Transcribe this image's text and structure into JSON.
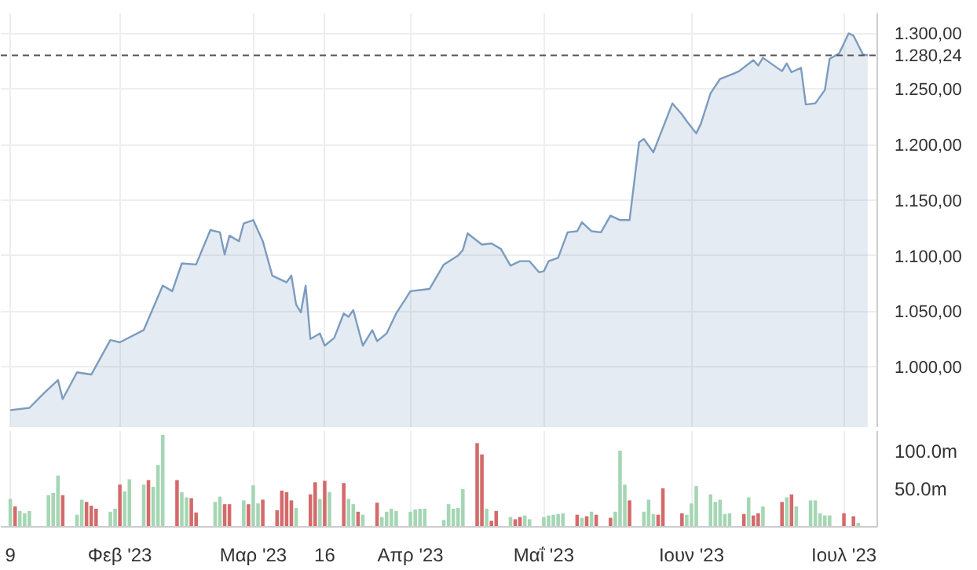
{
  "chart_data": [
    {
      "type": "area",
      "color": "#7b9cc0",
      "x": [
        "2023-01-09",
        "2023-01-13",
        "2023-01-16",
        "2023-01-19",
        "2023-01-20",
        "2023-01-23",
        "2023-01-26",
        "2023-01-30",
        "2023-02-01",
        "2023-02-06",
        "2023-02-07",
        "2023-02-10",
        "2023-02-12",
        "2023-02-14",
        "2023-02-17",
        "2023-02-20",
        "2023-02-22",
        "2023-02-23",
        "2023-02-24",
        "2023-02-26",
        "2023-02-27",
        "2023-03-01",
        "2023-03-03",
        "2023-03-05",
        "2023-03-08",
        "2023-03-09",
        "2023-03-10",
        "2023-03-11",
        "2023-03-12",
        "2023-03-13",
        "2023-03-15",
        "2023-03-16",
        "2023-03-18",
        "2023-03-20",
        "2023-03-21",
        "2023-03-22",
        "2023-03-24",
        "2023-03-26",
        "2023-03-27",
        "2023-03-29",
        "2023-03-31",
        "2023-04-03",
        "2023-04-07",
        "2023-04-10",
        "2023-04-13",
        "2023-04-14",
        "2023-04-15",
        "2023-04-18",
        "2023-04-20",
        "2023-04-22",
        "2023-04-24",
        "2023-04-26",
        "2023-04-28",
        "2023-04-30",
        "2023-05-01",
        "2023-05-02",
        "2023-05-04",
        "2023-05-06",
        "2023-05-08",
        "2023-05-09",
        "2023-05-11",
        "2023-05-13",
        "2023-05-15",
        "2023-05-17",
        "2023-05-19",
        "2023-05-21",
        "2023-05-22",
        "2023-05-24",
        "2023-05-25",
        "2023-05-28",
        "2023-05-30",
        "2023-05-31",
        "2023-06-02",
        "2023-06-03",
        "2023-06-05",
        "2023-06-07",
        "2023-06-10",
        "2023-06-11",
        "2023-06-14",
        "2023-06-15",
        "2023-06-16",
        "2023-06-18",
        "2023-06-20",
        "2023-06-21",
        "2023-06-22",
        "2023-06-24",
        "2023-06-25",
        "2023-06-27",
        "2023-06-29",
        "2023-06-30",
        "2023-07-02",
        "2023-07-04",
        "2023-07-05",
        "2023-07-07",
        "2023-07-08"
      ],
      "values": [
        961,
        963,
        976,
        988,
        971,
        995,
        993,
        1024,
        1022,
        1033,
        1043,
        1073,
        1068,
        1093,
        1092,
        1123,
        1121,
        1101,
        1118,
        1113,
        1129,
        1132,
        1113,
        1082,
        1076,
        1082,
        1056,
        1049,
        1073,
        1025,
        1030,
        1019,
        1026,
        1048,
        1045,
        1051,
        1019,
        1033,
        1023,
        1030,
        1048,
        1068,
        1070,
        1092,
        1100,
        1105,
        1120,
        1110,
        1111,
        1106,
        1091,
        1095,
        1095,
        1085,
        1086,
        1095,
        1098,
        1121,
        1122,
        1130,
        1122,
        1121,
        1136,
        1132,
        1132,
        1202,
        1205,
        1193,
        1204,
        1237,
        1227,
        1221,
        1210,
        1219,
        1246,
        1259,
        1264,
        1266,
        1276,
        1271,
        1278,
        1272,
        1266,
        1273,
        1265,
        1269,
        1236,
        1237,
        1249,
        1277,
        1282,
        1300,
        1298,
        1281,
        1280.24
      ],
      "xlim": [
        "2023-01-07",
        "2023-07-10"
      ],
      "xticks": [
        {
          "value": "2023-01-09",
          "label": null
        },
        {
          "value": "2023-02-01",
          "label": null
        },
        {
          "value": "2023-03-01",
          "label": null
        },
        {
          "value": "2023-03-16",
          "label": null
        },
        {
          "value": "2023-04-03",
          "label": null
        },
        {
          "value": "2023-05-01",
          "label": null
        },
        {
          "value": "2023-06-01",
          "label": null
        },
        {
          "value": "2023-07-03",
          "label": null
        }
      ],
      "ylim": [
        945,
        1318
      ],
      "yticks": [
        {
          "value": 1000,
          "label": "1.000,00"
        },
        {
          "value": 1050,
          "label": "1.050,00"
        },
        {
          "value": 1100,
          "label": "1.100,00"
        },
        {
          "value": 1150,
          "label": "1.150,00"
        },
        {
          "value": 1200,
          "label": "1.200,00"
        },
        {
          "value": 1250,
          "label": "1.250,00"
        },
        {
          "value": 1300,
          "label": "1.300,00"
        }
      ],
      "ref_lines": [
        {
          "axis": "y",
          "value": 1280.24,
          "label": "1.280,24",
          "color": "#555555",
          "line_style": "dashed"
        }
      ],
      "grid": true,
      "tick_labels": "y"
    },
    {
      "type": "bar",
      "x": [
        "2023-01-09",
        "2023-01-10",
        "2023-01-11",
        "2023-01-12",
        "2023-01-13",
        "2023-01-17",
        "2023-01-18",
        "2023-01-19",
        "2023-01-20",
        "2023-01-23",
        "2023-01-24",
        "2023-01-25",
        "2023-01-26",
        "2023-01-27",
        "2023-01-30",
        "2023-01-31",
        "2023-02-01",
        "2023-02-02",
        "2023-02-03",
        "2023-02-06",
        "2023-02-07",
        "2023-02-08",
        "2023-02-09",
        "2023-02-10",
        "2023-02-13",
        "2023-02-14",
        "2023-02-15",
        "2023-02-16",
        "2023-02-17",
        "2023-02-21",
        "2023-02-22",
        "2023-02-23",
        "2023-02-24",
        "2023-02-27",
        "2023-02-28",
        "2023-03-01",
        "2023-03-02",
        "2023-03-03",
        "2023-03-06",
        "2023-03-07",
        "2023-03-08",
        "2023-03-09",
        "2023-03-10",
        "2023-03-13",
        "2023-03-14",
        "2023-03-15",
        "2023-03-16",
        "2023-03-17",
        "2023-03-20",
        "2023-03-21",
        "2023-03-22",
        "2023-03-23",
        "2023-03-24",
        "2023-03-27",
        "2023-03-28",
        "2023-03-29",
        "2023-03-30",
        "2023-03-31",
        "2023-04-03",
        "2023-04-04",
        "2023-04-05",
        "2023-04-06",
        "2023-04-10",
        "2023-04-11",
        "2023-04-12",
        "2023-04-13",
        "2023-04-14",
        "2023-04-17",
        "2023-04-18",
        "2023-04-19",
        "2023-04-20",
        "2023-04-21",
        "2023-04-24",
        "2023-04-25",
        "2023-04-26",
        "2023-04-27",
        "2023-04-28",
        "2023-05-01",
        "2023-05-02",
        "2023-05-03",
        "2023-05-04",
        "2023-05-05",
        "2023-05-08",
        "2023-05-09",
        "2023-05-10",
        "2023-05-11",
        "2023-05-12",
        "2023-05-15",
        "2023-05-16",
        "2023-05-17",
        "2023-05-18",
        "2023-05-19",
        "2023-05-22",
        "2023-05-23",
        "2023-05-24",
        "2023-05-25",
        "2023-05-26",
        "2023-05-30",
        "2023-05-31",
        "2023-06-01",
        "2023-06-02",
        "2023-06-05",
        "2023-06-06",
        "2023-06-07",
        "2023-06-08",
        "2023-06-09",
        "2023-06-12",
        "2023-06-13",
        "2023-06-14",
        "2023-06-15",
        "2023-06-16",
        "2023-06-20",
        "2023-06-21",
        "2023-06-22",
        "2023-06-23",
        "2023-06-26",
        "2023-06-27",
        "2023-06-28",
        "2023-06-29",
        "2023-06-30",
        "2023-07-03",
        "2023-07-05",
        "2023-07-06"
      ],
      "values": [
        37,
        27,
        21,
        18,
        21,
        42,
        45,
        68,
        42,
        16,
        36,
        33,
        28,
        24,
        20,
        24,
        56,
        47,
        63,
        56,
        62,
        53,
        82,
        122,
        62,
        46,
        39,
        38,
        19,
        33,
        40,
        30,
        30,
        35,
        30,
        55,
        31,
        36,
        22,
        48,
        46,
        35,
        25,
        43,
        59,
        37,
        61,
        46,
        58,
        37,
        30,
        20,
        16,
        32,
        13,
        20,
        24,
        21,
        20,
        23,
        24,
        24,
        9,
        30,
        24,
        25,
        50,
        111,
        96,
        24,
        8,
        21,
        13,
        10,
        13,
        15,
        10,
        13,
        15,
        16,
        17,
        18,
        16,
        12,
        14,
        20,
        16,
        12,
        20,
        101,
        56,
        35,
        20,
        36,
        17,
        16,
        51,
        18,
        16,
        31,
        54,
        43,
        33,
        36,
        17,
        18,
        17,
        39,
        15,
        18,
        27,
        33,
        39,
        43,
        27,
        35,
        35,
        18,
        15,
        15,
        18,
        14,
        5
      ],
      "colors": [
        "#a5d6b4",
        "#d46a6a",
        "#a5d6b4",
        "#a5d6b4",
        "#a5d6b4",
        "#a5d6b4",
        "#a5d6b4",
        "#a5d6b4",
        "#d46a6a",
        "#a5d6b4",
        "#a5d6b4",
        "#d46a6a",
        "#d46a6a",
        "#d46a6a",
        "#a5d6b4",
        "#a5d6b4",
        "#d46a6a",
        "#a5d6b4",
        "#a5d6b4",
        "#a5d6b4",
        "#d46a6a",
        "#a5d6b4",
        "#a5d6b4",
        "#a5d6b4",
        "#d46a6a",
        "#a5d6b4",
        "#a5d6b4",
        "#d46a6a",
        "#d46a6a",
        "#a5d6b4",
        "#a5d6b4",
        "#d46a6a",
        "#d46a6a",
        "#a5d6b4",
        "#d46a6a",
        "#a5d6b4",
        "#a5d6b4",
        "#d46a6a",
        "#d46a6a",
        "#d46a6a",
        "#d46a6a",
        "#d46a6a",
        "#a5d6b4",
        "#d46a6a",
        "#d46a6a",
        "#a5d6b4",
        "#d46a6a",
        "#a5d6b4",
        "#d46a6a",
        "#a5d6b4",
        "#a5d6b4",
        "#d46a6a",
        "#a5d6b4",
        "#d46a6a",
        "#a5d6b4",
        "#a5d6b4",
        "#a5d6b4",
        "#a5d6b4",
        "#a5d6b4",
        "#a5d6b4",
        "#a5d6b4",
        "#a5d6b4",
        "#a5d6b4",
        "#a5d6b4",
        "#a5d6b4",
        "#a5d6b4",
        "#a5d6b4",
        "#d46a6a",
        "#d46a6a",
        "#a5d6b4",
        "#d46a6a",
        "#d46a6a",
        "#a5d6b4",
        "#d46a6a",
        "#d46a6a",
        "#a5d6b4",
        "#a5d6b4",
        "#a5d6b4",
        "#a5d6b4",
        "#a5d6b4",
        "#a5d6b4",
        "#a5d6b4",
        "#d46a6a",
        "#a5d6b4",
        "#d46a6a",
        "#a5d6b4",
        "#d46a6a",
        "#d46a6a",
        "#a5d6b4",
        "#a5d6b4",
        "#a5d6b4",
        "#d46a6a",
        "#a5d6b4",
        "#a5d6b4",
        "#a5d6b4",
        "#d46a6a",
        "#d46a6a",
        "#d46a6a",
        "#a5d6b4",
        "#a5d6b4",
        "#a5d6b4",
        "#a5d6b4",
        "#a5d6b4",
        "#a5d6b4",
        "#a5d6b4",
        "#a5d6b4",
        "#d46a6a",
        "#a5d6b4",
        "#d46a6a",
        "#d46a6a",
        "#a5d6b4",
        "#d46a6a",
        "#a5d6b4",
        "#d46a6a",
        "#a5d6b4",
        "#a5d6b4",
        "#a5d6b4",
        "#a5d6b4",
        "#a5d6b4",
        "#a5d6b4",
        "#d46a6a",
        "#d46a6a",
        "#a5d6b4"
      ],
      "xlim": [
        "2023-01-07",
        "2023-07-10"
      ],
      "xticks": [
        {
          "value": "2023-01-09",
          "label": "9"
        },
        {
          "value": "2023-02-01",
          "label": "Φεβ '23"
        },
        {
          "value": "2023-03-01",
          "label": "Μαρ '23"
        },
        {
          "value": "2023-03-16",
          "label": "16"
        },
        {
          "value": "2023-04-03",
          "label": "Απρ '23"
        },
        {
          "value": "2023-05-01",
          "label": "Μαΐ '23"
        },
        {
          "value": "2023-06-01",
          "label": "Ιουν '23"
        },
        {
          "value": "2023-07-03",
          "label": "Ιουλ '23"
        }
      ],
      "ylim": [
        0,
        127
      ],
      "yticks": [
        {
          "value": 50,
          "label": "50.0m"
        },
        {
          "value": 100,
          "label": "100.0m"
        }
      ],
      "grid": "x"
    }
  ]
}
